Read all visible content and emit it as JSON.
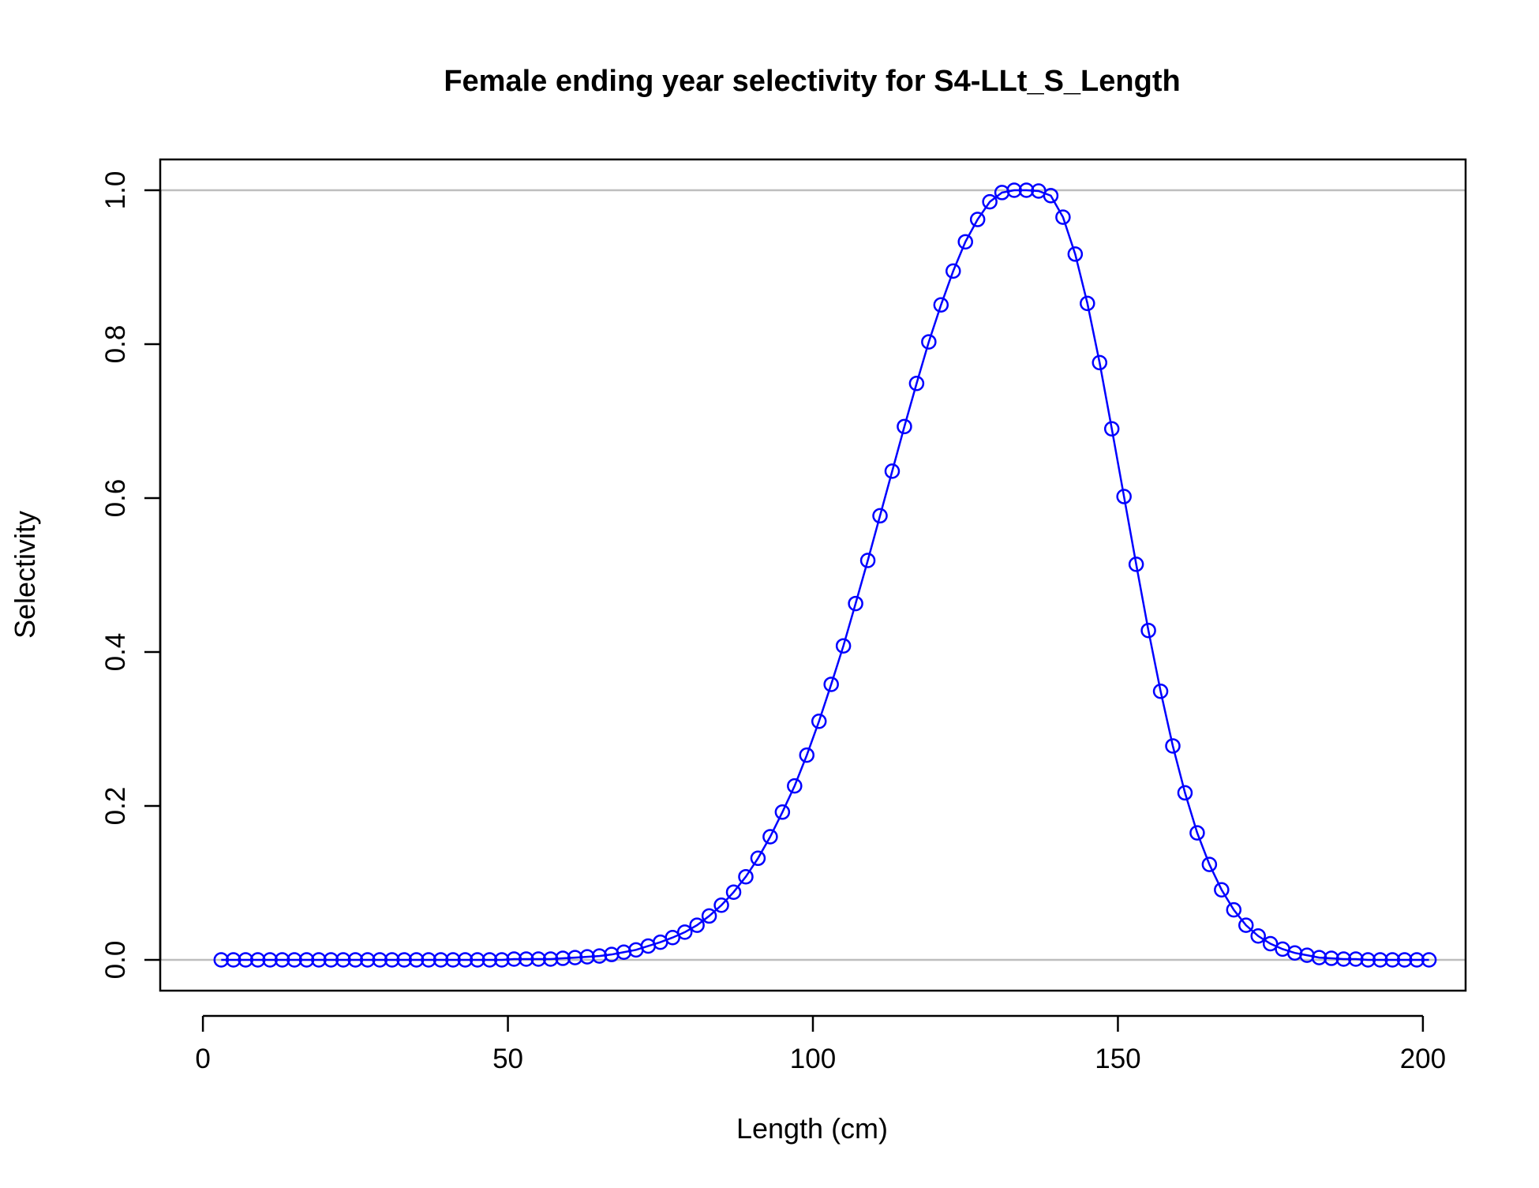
{
  "chart_data": {
    "type": "line",
    "title": "Female ending year selectivity for S4-LLt_S_Length",
    "xlabel": "Length (cm)",
    "ylabel": "Selectivity",
    "xlim": [
      -7,
      207
    ],
    "ylim": [
      -0.04,
      1.04
    ],
    "x_ticks": [
      0,
      50,
      100,
      150,
      200
    ],
    "x_tick_labels": [
      "0",
      "50",
      "100",
      "150",
      "200"
    ],
    "y_ticks": [
      0,
      0.2,
      0.4,
      0.6,
      0.8,
      1
    ],
    "y_tick_labels": [
      "0.0",
      "0.2",
      "0.4",
      "0.6",
      "0.8",
      "1.0"
    ],
    "reference_lines_y": [
      0,
      1
    ],
    "grid": false,
    "legend": "none",
    "series": [
      {
        "color": "#0000ff",
        "line": true,
        "markers": "open-circle",
        "x": [
          3,
          5,
          7,
          9,
          11,
          13,
          15,
          17,
          19,
          21,
          23,
          25,
          27,
          29,
          31,
          33,
          35,
          37,
          39,
          41,
          43,
          45,
          47,
          49,
          51,
          53,
          55,
          57,
          59,
          61,
          63,
          65,
          67,
          69,
          71,
          73,
          75,
          77,
          79,
          81,
          83,
          85,
          87,
          89,
          91,
          93,
          95,
          97,
          99,
          101,
          103,
          105,
          107,
          109,
          111,
          113,
          115,
          117,
          119,
          121,
          123,
          125,
          127,
          129,
          131,
          133,
          135,
          137,
          139,
          141,
          143,
          145,
          147,
          149,
          151,
          153,
          155,
          157,
          159,
          161,
          163,
          165,
          167,
          169,
          171,
          173,
          175,
          177,
          179,
          181,
          183,
          185,
          187,
          189,
          191,
          193,
          195,
          197,
          199,
          201
        ],
        "values": [
          0,
          0,
          0,
          0,
          0,
          0,
          0,
          0,
          0,
          0,
          0,
          0,
          0,
          0,
          0,
          0,
          0,
          0,
          0,
          0,
          0,
          0,
          0,
          0,
          0.001,
          0.001,
          0.001,
          0.001,
          0.002,
          0.003,
          0.004,
          0.005,
          0.007,
          0.01,
          0.013,
          0.018,
          0.023,
          0.029,
          0.036,
          0.045,
          0.057,
          0.071,
          0.088,
          0.108,
          0.132,
          0.16,
          0.192,
          0.226,
          0.266,
          0.31,
          0.358,
          0.408,
          0.463,
          0.519,
          0.577,
          0.635,
          0.693,
          0.749,
          0.803,
          0.851,
          0.895,
          0.933,
          0.962,
          0.985,
          0.997,
          1,
          1,
          0.999,
          0.993,
          0.965,
          0.917,
          0.853,
          0.776,
          0.69,
          0.602,
          0.514,
          0.428,
          0.349,
          0.278,
          0.217,
          0.165,
          0.124,
          0.091,
          0.065,
          0.045,
          0.031,
          0.021,
          0.014,
          0.009,
          0.006,
          0.003,
          0.002,
          0.001,
          0.001,
          0,
          0,
          0,
          0,
          0,
          0
        ]
      }
    ]
  }
}
